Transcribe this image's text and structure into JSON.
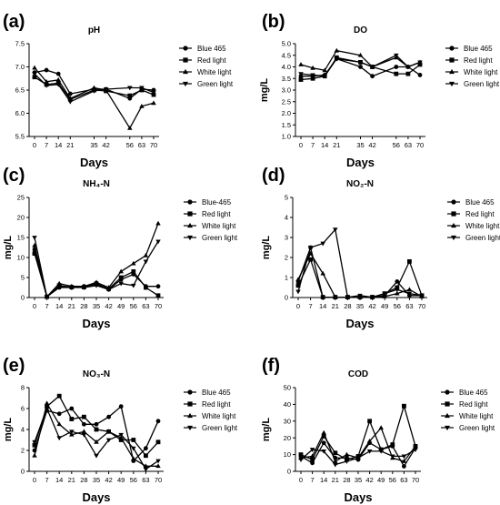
{
  "chart_data": [
    {
      "panel": "(a)",
      "type": "line",
      "title": "pH",
      "xlabel": "Days",
      "ylabel": "",
      "x": [
        0,
        7,
        14,
        21,
        35,
        42,
        56,
        63,
        70
      ],
      "xticks": [
        0,
        7,
        14,
        21,
        35,
        42,
        56,
        63,
        70
      ],
      "ylim": [
        5.5,
        7.5
      ],
      "yticks": [
        "5.5",
        "6.0",
        "6.5",
        "7.0",
        "7.5"
      ],
      "series": [
        {
          "name": "Blue 465",
          "marker": "circle",
          "values": [
            6.88,
            6.93,
            6.85,
            6.42,
            6.52,
            6.52,
            6.32,
            6.52,
            6.5
          ]
        },
        {
          "name": "Red light",
          "marker": "square",
          "values": [
            6.78,
            6.62,
            6.65,
            6.3,
            6.5,
            6.48,
            6.38,
            6.5,
            6.4
          ]
        },
        {
          "name": "White light",
          "marker": "triangle-up",
          "values": [
            6.98,
            6.68,
            6.72,
            6.32,
            6.55,
            6.5,
            5.68,
            6.15,
            6.22
          ]
        },
        {
          "name": "Green light",
          "marker": "triangle-down",
          "values": [
            6.85,
            6.6,
            6.62,
            6.25,
            6.48,
            6.52,
            6.55,
            6.55,
            6.45
          ]
        }
      ],
      "legend": "right"
    },
    {
      "panel": "(b)",
      "type": "line",
      "title": "DO",
      "xlabel": "Days",
      "ylabel": "mg/L",
      "x": [
        0,
        7,
        14,
        21,
        35,
        42,
        56,
        63,
        70
      ],
      "xticks": [
        0,
        7,
        14,
        21,
        35,
        42,
        56,
        63,
        70
      ],
      "ylim": [
        1.0,
        5.0
      ],
      "yticks": [
        "1.0",
        "1.5",
        "2.0",
        "2.5",
        "3.0",
        "3.5",
        "4.0",
        "4.5",
        "5.0"
      ],
      "series": [
        {
          "name": "Blue 465",
          "marker": "circle",
          "values": [
            3.6,
            3.6,
            3.65,
            4.35,
            4.0,
            3.6,
            4.0,
            4.0,
            3.65
          ]
        },
        {
          "name": "Red light",
          "marker": "square",
          "values": [
            3.45,
            3.5,
            3.6,
            4.4,
            4.2,
            4.0,
            3.7,
            3.7,
            4.1
          ]
        },
        {
          "name": "White light",
          "marker": "triangle-up",
          "values": [
            4.1,
            3.95,
            3.85,
            4.7,
            4.5,
            4.0,
            4.4,
            4.0,
            4.2
          ]
        },
        {
          "name": "Green light",
          "marker": "triangle-down",
          "values": [
            3.7,
            3.65,
            3.6,
            4.35,
            4.2,
            4.0,
            4.5,
            4.0,
            4.2
          ]
        }
      ],
      "legend": "right"
    },
    {
      "panel": "(c)",
      "type": "line",
      "title": "NH₄-N",
      "xlabel": "Days",
      "ylabel": "mg/L",
      "x": [
        0,
        7,
        14,
        21,
        28,
        35,
        42,
        49,
        56,
        63,
        70
      ],
      "xticks": [
        0,
        7,
        14,
        21,
        28,
        35,
        42,
        49,
        56,
        63,
        70
      ],
      "ylim": [
        0,
        25
      ],
      "yticks": [
        "0",
        "5",
        "10",
        "15",
        "20",
        "25"
      ],
      "series": [
        {
          "name": "Blue-465",
          "marker": "circle",
          "values": [
            12,
            0.2,
            2.5,
            2.5,
            2.8,
            3.2,
            2.0,
            4.5,
            5.8,
            2.8,
            2.8
          ]
        },
        {
          "name": "Red light",
          "marker": "square",
          "values": [
            11,
            0.2,
            3.0,
            2.6,
            2.6,
            3.5,
            2.2,
            5.0,
            6.5,
            2.5,
            0.5
          ]
        },
        {
          "name": "White light",
          "marker": "triangle-up",
          "values": [
            13,
            0.2,
            3.5,
            2.8,
            2.8,
            3.8,
            2.5,
            6.5,
            8.5,
            10.5,
            18.5
          ]
        },
        {
          "name": "Green light",
          "marker": "triangle-down",
          "values": [
            15,
            0.2,
            2.8,
            2.5,
            2.5,
            3.0,
            2.0,
            3.5,
            3.0,
            9.0,
            14.0
          ]
        }
      ],
      "legend": "right"
    },
    {
      "panel": "(d)",
      "type": "line",
      "title": "NO₂-N",
      "xlabel": "Days",
      "ylabel": "mg/L",
      "x": [
        0,
        7,
        14,
        21,
        28,
        35,
        42,
        49,
        56,
        63,
        70
      ],
      "xticks": [
        0,
        7,
        14,
        21,
        28,
        35,
        42,
        49,
        56,
        63,
        70
      ],
      "ylim": [
        0,
        5
      ],
      "yticks": [
        "0",
        "1",
        "2",
        "3",
        "4",
        "5"
      ],
      "series": [
        {
          "name": "Blue 465",
          "marker": "circle",
          "values": [
            0.8,
            2.5,
            0.02,
            0.02,
            0.02,
            0.02,
            0.02,
            0.1,
            0.8,
            0.1,
            0.1
          ]
        },
        {
          "name": "Red light",
          "marker": "square",
          "values": [
            0.6,
            1.9,
            0.02,
            0.02,
            0.02,
            0.02,
            0.02,
            0.2,
            0.5,
            1.8,
            0.1
          ]
        },
        {
          "name": "White light",
          "marker": "triangle-up",
          "values": [
            0.9,
            2.2,
            1.2,
            0.02,
            0.02,
            0.02,
            0.02,
            0.05,
            0.2,
            0.4,
            0.05
          ]
        },
        {
          "name": "Green light",
          "marker": "triangle-down",
          "values": [
            0.3,
            2.5,
            2.7,
            3.4,
            0.02,
            0.1,
            0.02,
            0.2,
            0.4,
            0.2,
            0.1
          ]
        }
      ],
      "legend": "right"
    },
    {
      "panel": "(e)",
      "type": "line",
      "title": "NO₃-N",
      "xlabel": "Days",
      "ylabel": "mg/L",
      "x": [
        0,
        7,
        14,
        21,
        28,
        35,
        42,
        49,
        56,
        63,
        70
      ],
      "xticks": [
        0,
        7,
        14,
        21,
        28,
        35,
        42,
        49,
        56,
        63,
        70
      ],
      "ylim": [
        0,
        8
      ],
      "yticks": [
        "0",
        "2",
        "4",
        "6",
        "8"
      ],
      "series": [
        {
          "name": "Blue 465",
          "marker": "circle",
          "values": [
            2.0,
            5.8,
            5.5,
            6.0,
            4.5,
            4.5,
            5.2,
            6.2,
            1.0,
            2.2,
            4.8
          ]
        },
        {
          "name": "Red light",
          "marker": "square",
          "values": [
            2.5,
            6.2,
            7.2,
            5.0,
            5.2,
            4.0,
            3.8,
            3.0,
            3.0,
            1.5,
            2.8
          ]
        },
        {
          "name": "White light",
          "marker": "triangle-up",
          "values": [
            1.5,
            6.5,
            4.5,
            3.5,
            3.8,
            2.8,
            3.8,
            3.2,
            1.2,
            0.5,
            0.5
          ]
        },
        {
          "name": "Green light",
          "marker": "triangle-down",
          "values": [
            2.8,
            6.0,
            3.2,
            3.8,
            3.5,
            1.5,
            3.0,
            3.5,
            2.2,
            0.2,
            1.0
          ]
        }
      ],
      "legend": "right"
    },
    {
      "panel": "(f)",
      "type": "line",
      "title": "COD",
      "xlabel": "Days",
      "ylabel": "mg/L",
      "x": [
        0,
        7,
        14,
        21,
        28,
        35,
        42,
        49,
        56,
        63,
        70
      ],
      "xticks": [
        0,
        7,
        14,
        21,
        28,
        35,
        42,
        49,
        56,
        63,
        70
      ],
      "ylim": [
        0,
        50
      ],
      "yticks": [
        "0",
        "10",
        "20",
        "30",
        "40",
        "50"
      ],
      "series": [
        {
          "name": "Blue 465",
          "marker": "circle",
          "values": [
            9,
            5,
            17,
            8,
            8,
            7,
            17,
            13,
            15,
            3,
            14
          ]
        },
        {
          "name": "Red light",
          "marker": "square",
          "values": [
            10,
            7,
            21,
            11,
            7,
            9,
            30,
            13,
            16,
            39,
            15
          ]
        },
        {
          "name": "White light",
          "marker": "triangle-up",
          "values": [
            8,
            9,
            23,
            6,
            10,
            8,
            18,
            26,
            8,
            6,
            15
          ]
        },
        {
          "name": "Green light",
          "marker": "triangle-down",
          "values": [
            7,
            13,
            12,
            4,
            6,
            8,
            12,
            12,
            9,
            9,
            13
          ]
        }
      ],
      "legend": "right"
    }
  ]
}
